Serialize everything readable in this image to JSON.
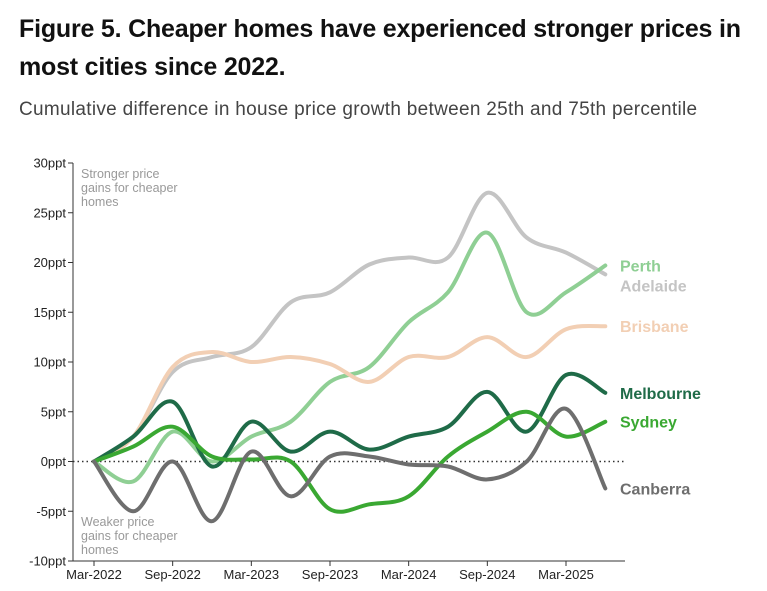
{
  "title": "Figure 5. Cheaper homes have experienced stronger prices in most cities since 2022.",
  "subtitle": "Cumulative difference in house price growth between 25th and 75th percentile",
  "annotations": {
    "top": [
      "Stronger price",
      "gains for cheaper",
      "homes"
    ],
    "bottom": [
      "Weaker price",
      "gains for cheaper",
      "homes"
    ]
  },
  "chart_data": {
    "type": "line",
    "title": "Cumulative difference in house price growth between 25th and 75th percentile",
    "xlabel": "",
    "ylabel": "",
    "x": [
      2022.17,
      2022.42,
      2022.67,
      2022.92,
      2023.17,
      2023.42,
      2023.67,
      2023.92,
      2024.17,
      2024.42,
      2024.67,
      2024.92,
      2025.17,
      2025.42
    ],
    "x_ticks": [
      2022.17,
      2022.67,
      2023.17,
      2023.67,
      2024.17,
      2024.67,
      2025.17
    ],
    "x_tick_labels": [
      "Mar-2022",
      "Sep-2022",
      "Mar-2023",
      "Sep-2023",
      "Mar-2024",
      "Sep-2024",
      "Mar-2025"
    ],
    "y_ticks": [
      -10,
      -5,
      0,
      5,
      10,
      15,
      20,
      25,
      30
    ],
    "y_tick_labels": [
      "-10ppt",
      "-5ppt",
      "0ppt",
      "5ppt",
      "10ppt",
      "15ppt",
      "20ppt",
      "25ppt",
      "30ppt"
    ],
    "ylim": [
      -10,
      30
    ],
    "xlim": [
      2022.17,
      2025.6
    ],
    "zero_line": true,
    "series": [
      {
        "name": "Adelaide",
        "color": "#c4c4c4",
        "values": [
          0,
          2.5,
          9.0,
          10.5,
          11.5,
          16.0,
          17.0,
          19.8,
          20.5,
          20.5,
          27.0,
          22.5,
          21.0,
          18.8
        ]
      },
      {
        "name": "Perth",
        "color": "#8fcf94",
        "values": [
          0,
          -2.0,
          3.0,
          0.0,
          2.5,
          4.0,
          8.0,
          9.5,
          14.0,
          17.0,
          23.0,
          15.0,
          17.0,
          19.7
        ]
      },
      {
        "name": "Brisbane",
        "color": "#f2cfb4",
        "values": [
          0,
          2.5,
          9.5,
          11.0,
          10.0,
          10.5,
          9.8,
          8.0,
          10.5,
          10.5,
          12.5,
          10.5,
          13.3,
          13.6
        ]
      },
      {
        "name": "Melbourne",
        "color": "#1f6b48",
        "values": [
          0,
          2.5,
          6.0,
          -0.5,
          4.0,
          1.0,
          3.0,
          1.2,
          2.5,
          3.5,
          7.0,
          3.0,
          8.7,
          6.9
        ]
      },
      {
        "name": "Sydney",
        "color": "#3aa832",
        "values": [
          0,
          1.5,
          3.5,
          0.5,
          0.2,
          0.0,
          -4.8,
          -4.3,
          -3.5,
          0.5,
          3.0,
          5.0,
          2.5,
          4.0
        ]
      },
      {
        "name": "Canberra",
        "color": "#6e6e6e",
        "values": [
          0,
          -5.0,
          0.0,
          -6.0,
          1.0,
          -3.5,
          0.5,
          0.5,
          -0.3,
          -0.5,
          -1.8,
          0.0,
          5.3,
          -2.7
        ]
      }
    ],
    "legend": "inline-right"
  }
}
